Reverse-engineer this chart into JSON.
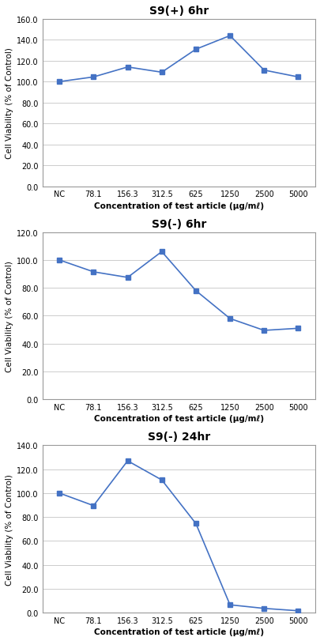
{
  "plots": [
    {
      "title": "S9(+) 6hr",
      "x_labels": [
        "NC",
        "78.1",
        "156.3",
        "312.5",
        "625",
        "1250",
        "2500",
        "5000"
      ],
      "y_values": [
        100.0,
        104.5,
        114.0,
        109.0,
        131.0,
        144.0,
        111.0,
        104.5
      ],
      "ylim": [
        0,
        160.0
      ],
      "yticks": [
        0.0,
        20.0,
        40.0,
        60.0,
        80.0,
        100.0,
        120.0,
        140.0,
        160.0
      ]
    },
    {
      "title": "S9(-) 6hr",
      "x_labels": [
        "NC",
        "78.1",
        "156.3",
        "312.5",
        "625",
        "1250",
        "2500",
        "5000"
      ],
      "y_values": [
        100.0,
        91.5,
        87.5,
        106.0,
        78.0,
        58.0,
        49.5,
        51.0
      ],
      "ylim": [
        0,
        120.0
      ],
      "yticks": [
        0.0,
        20.0,
        40.0,
        60.0,
        80.0,
        100.0,
        120.0
      ]
    },
    {
      "title": "S9(-) 24hr",
      "x_labels": [
        "NC",
        "78.1",
        "156.3",
        "312.5",
        "625",
        "1250",
        "2500",
        "5000"
      ],
      "y_values": [
        100.0,
        89.5,
        127.0,
        111.0,
        74.5,
        6.5,
        3.5,
        1.5
      ],
      "ylim": [
        0,
        140.0
      ],
      "yticks": [
        0.0,
        20.0,
        40.0,
        60.0,
        80.0,
        100.0,
        120.0,
        140.0
      ]
    }
  ],
  "line_color": "#4472C4",
  "marker": "s",
  "marker_size": 4,
  "line_width": 1.2,
  "xlabel": "Concentration of test article (μg/mℓ)",
  "ylabel": "Cell Viability (% of Control)",
  "grid_color": "#CCCCCC",
  "background_color": "#FFFFFF",
  "title_fontsize": 10,
  "label_fontsize": 7.5,
  "tick_fontsize": 7
}
